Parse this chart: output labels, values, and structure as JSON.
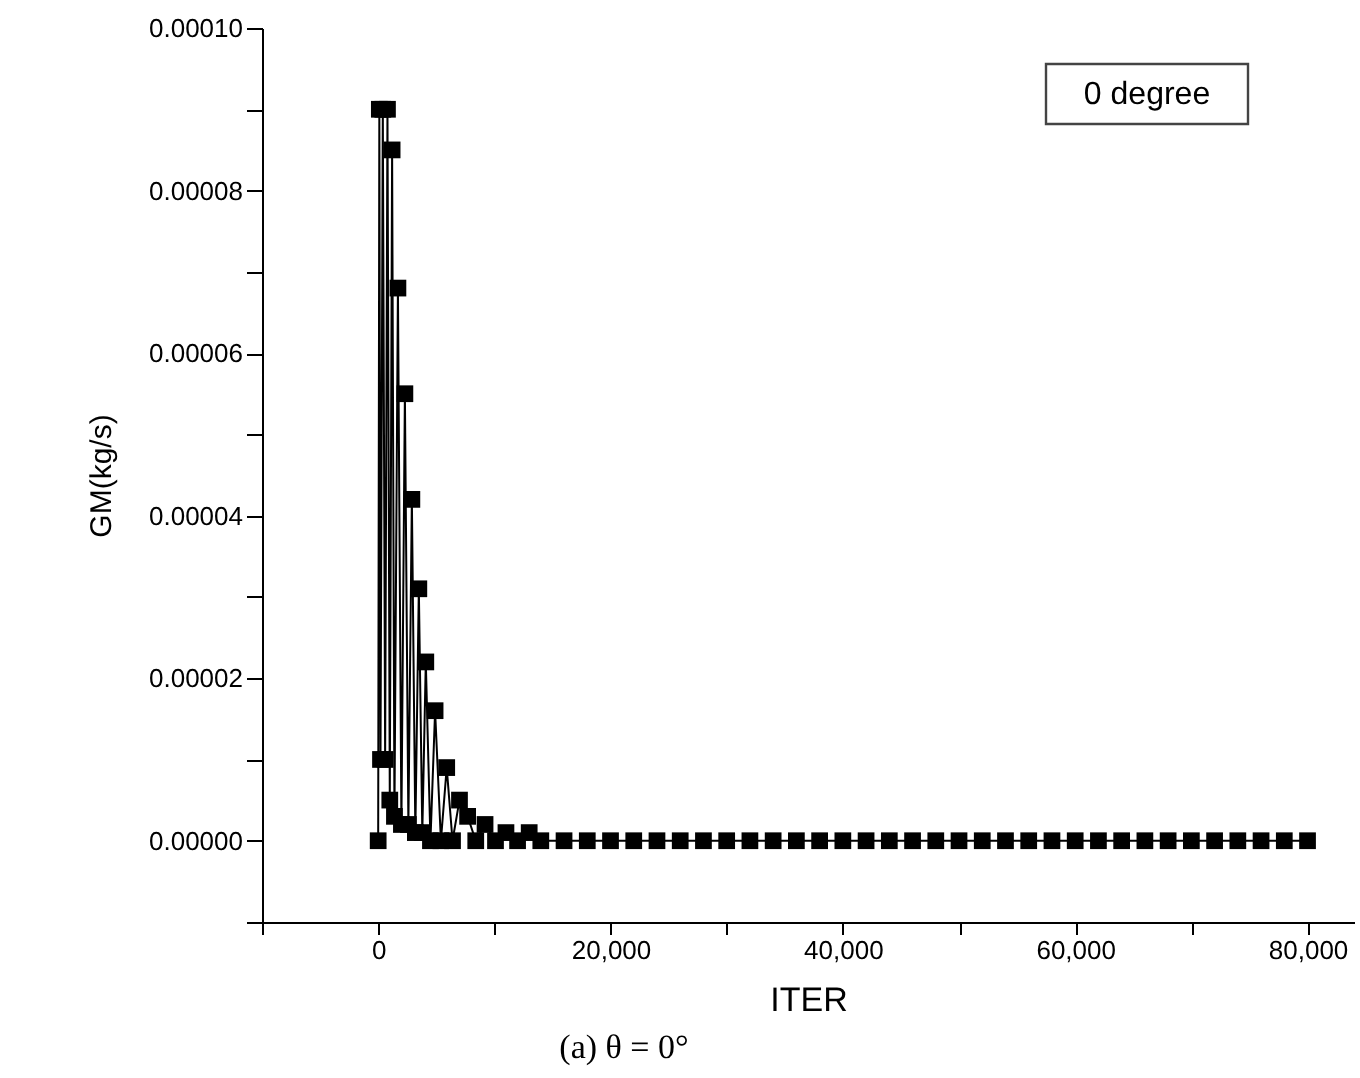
{
  "chart_data": {
    "type": "line",
    "xlabel": "ITER",
    "ylabel": "GM(kg/s)",
    "annotations": [
      "0 degree",
      "(a) θ = 0°"
    ],
    "x": [
      0,
      100,
      200,
      400,
      600,
      800,
      1000,
      1200,
      1400,
      1700,
      2000,
      2300,
      2600,
      2900,
      3200,
      3500,
      3800,
      4100,
      4500,
      4900,
      5400,
      5900,
      6400,
      7000,
      7700,
      8400,
      9200,
      10100,
      11000,
      12000,
      13000,
      14000,
      16000,
      18000,
      20000,
      22000,
      24000,
      26000,
      28000,
      30000,
      32000,
      34000,
      36000,
      38000,
      40000,
      42000,
      44000,
      46000,
      48000,
      50000,
      52000,
      54000,
      56000,
      58000,
      60000,
      62000,
      64000,
      66000,
      68000,
      70000,
      72000,
      74000,
      76000,
      78000,
      80000
    ],
    "series": [
      {
        "color": "#000000",
        "values": [
          0,
          9e-05,
          1e-05,
          9e-05,
          1e-05,
          9e-05,
          5e-06,
          8.5e-05,
          3e-06,
          6.8e-05,
          2e-06,
          5.5e-05,
          2e-06,
          4.2e-05,
          1e-06,
          3.1e-05,
          1e-06,
          2.2e-05,
          0,
          1.6e-05,
          0,
          9e-06,
          0,
          5e-06,
          3e-06,
          0,
          2e-06,
          0,
          1e-06,
          0,
          1e-06,
          0,
          0,
          0,
          0,
          0,
          0,
          0,
          0,
          0,
          0,
          0,
          0,
          0,
          0,
          0,
          0,
          0,
          0,
          0,
          0,
          0,
          0,
          0,
          0,
          0,
          0,
          0,
          0,
          0,
          0,
          0,
          0,
          0,
          0
        ]
      }
    ],
    "xlim": [
      -10000,
      84000
    ],
    "xticks": [
      {
        "value": -10000,
        "label": null
      },
      0,
      {
        "value": 10000,
        "label": null
      },
      {
        "value": 20000,
        "label": "20,000"
      },
      {
        "value": 30000,
        "label": null
      },
      {
        "value": 40000,
        "label": "40,000"
      },
      {
        "value": 50000,
        "label": null
      },
      {
        "value": 60000,
        "label": "60,000"
      },
      {
        "value": 70000,
        "label": null
      },
      {
        "value": 80000,
        "label": "80,000"
      }
    ],
    "ylim": [
      -1e-05,
      0.0001
    ],
    "yticks": [
      {
        "value": -1e-05,
        "label": null
      },
      {
        "value": 0,
        "label": "0.00000"
      },
      {
        "value": 1e-05,
        "label": null
      },
      {
        "value": 2e-05,
        "label": "0.00002"
      },
      {
        "value": 3e-05,
        "label": null
      },
      {
        "value": 4e-05,
        "label": "0.00004"
      },
      {
        "value": 5e-05,
        "label": null
      },
      {
        "value": 6e-05,
        "label": "0.00006"
      },
      {
        "value": 7e-05,
        "label": null
      },
      {
        "value": 8e-05,
        "label": "0.00008"
      },
      {
        "value": 9e-05,
        "label": null
      },
      {
        "value": 0.0001,
        "label": "0.00010"
      }
    ],
    "grid": false,
    "marker": "square",
    "line_style": "solid"
  }
}
